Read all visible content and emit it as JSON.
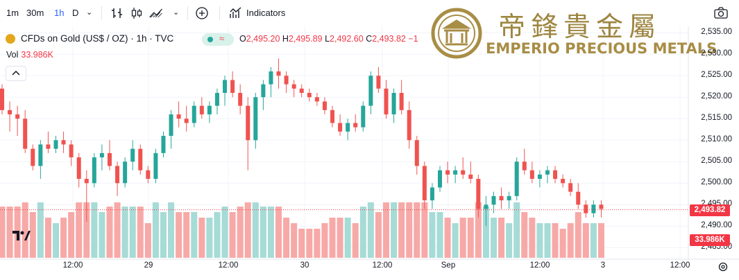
{
  "toolbar": {
    "intervals": [
      "1m",
      "30m",
      "1h",
      "D"
    ],
    "active_interval": "1h",
    "indicators_label": "Indicators"
  },
  "legend": {
    "symbol": "CFDs on Gold (US$ / OZ) · 1h · TVC",
    "o_label": "O",
    "o_value": "2,495.20",
    "h_label": "H",
    "h_value": "2,495.89",
    "l_label": "L",
    "l_value": "2,492.60",
    "c_label": "C",
    "c_value": "2,493.82",
    "change": "−1",
    "vol_label": "Vol",
    "vol_value": "33.986K"
  },
  "logo": {
    "chinese": "帝鋒貴金屬",
    "english": "EMPERIO PRECIOUS METALS"
  },
  "colors": {
    "up": "#26a69a",
    "down": "#ef5350",
    "up_vol": "#a6dbd6",
    "down_vol": "#f7a9a7",
    "gold": "#a88d45"
  },
  "chart_data": {
    "type": "candlestick",
    "y_ticks": [
      "2,535.00",
      "2,530.00",
      "2,525.00",
      "2,520.00",
      "2,515.00",
      "2,510.00",
      "2,505.00",
      "2,500.00",
      "2,495.00",
      "2,490.00",
      "2,485.00"
    ],
    "ylim": [
      2484,
      2536
    ],
    "x_ticks": [
      "12:00",
      "29",
      "12:00",
      "30",
      "12:00",
      "Sep",
      "12:00",
      "3",
      "12:00"
    ],
    "last_price": "2,493.82",
    "last_volume": "33.986K",
    "candles": [
      [
        2522,
        2523,
        2516,
        2517
      ],
      [
        2517,
        2519,
        2512,
        2516
      ],
      [
        2516,
        2518,
        2511,
        2515
      ],
      [
        2515,
        2517,
        2507,
        2508
      ],
      [
        2508,
        2509,
        2503,
        2504
      ],
      [
        2504,
        2510,
        2501,
        2509
      ],
      [
        2509,
        2512,
        2507,
        2508
      ],
      [
        2508,
        2511,
        2507,
        2510
      ],
      [
        2510,
        2512,
        2507,
        2509
      ],
      [
        2509,
        2510,
        2504,
        2506
      ],
      [
        2506,
        2507,
        2499,
        2501
      ],
      [
        2501,
        2503,
        2491,
        2500
      ],
      [
        2500,
        2507,
        2499,
        2506
      ],
      [
        2506,
        2509,
        2503,
        2507
      ],
      [
        2507,
        2510,
        2503,
        2504
      ],
      [
        2504,
        2505,
        2497,
        2500
      ],
      [
        2500,
        2506,
        2499,
        2505
      ],
      [
        2505,
        2510,
        2503,
        2508
      ],
      [
        2508,
        2509,
        2502,
        2503
      ],
      [
        2503,
        2504,
        2500,
        2501
      ],
      [
        2501,
        2508,
        2500,
        2507
      ],
      [
        2507,
        2512,
        2506,
        2511
      ],
      [
        2511,
        2517,
        2508,
        2516
      ],
      [
        2516,
        2519,
        2513,
        2515
      ],
      [
        2515,
        2518,
        2512,
        2514
      ],
      [
        2514,
        2519,
        2513,
        2518
      ],
      [
        2518,
        2520,
        2515,
        2516
      ],
      [
        2516,
        2519,
        2514,
        2518
      ],
      [
        2518,
        2522,
        2516,
        2521
      ],
      [
        2521,
        2525,
        2518,
        2524
      ],
      [
        2524,
        2526,
        2520,
        2521
      ],
      [
        2521,
        2523,
        2516,
        2518
      ],
      [
        2518,
        2520,
        2503,
        2510
      ],
      [
        2510,
        2521,
        2508,
        2520
      ],
      [
        2520,
        2524,
        2517,
        2523
      ],
      [
        2523,
        2527,
        2520,
        2526
      ],
      [
        2526,
        2529,
        2522,
        2525
      ],
      [
        2525,
        2526,
        2521,
        2523
      ],
      [
        2523,
        2524,
        2520,
        2522
      ],
      [
        2522,
        2523,
        2520,
        2521
      ],
      [
        2521,
        2522,
        2519,
        2520
      ],
      [
        2520,
        2521,
        2518,
        2519
      ],
      [
        2519,
        2520,
        2516,
        2517
      ],
      [
        2517,
        2518,
        2513,
        2514
      ],
      [
        2514,
        2516,
        2511,
        2512
      ],
      [
        2512,
        2515,
        2510,
        2514
      ],
      [
        2514,
        2516,
        2512,
        2513
      ],
      [
        2513,
        2519,
        2512,
        2518
      ],
      [
        2518,
        2526,
        2516,
        2525
      ],
      [
        2525,
        2527,
        2521,
        2522
      ],
      [
        2522,
        2524,
        2515,
        2516
      ],
      [
        2516,
        2522,
        2514,
        2521
      ],
      [
        2521,
        2524,
        2516,
        2517
      ],
      [
        2517,
        2519,
        2508,
        2510
      ],
      [
        2510,
        2511,
        2502,
        2504
      ],
      [
        2504,
        2505,
        2494,
        2496
      ],
      [
        2496,
        2500,
        2494,
        2499
      ],
      [
        2499,
        2504,
        2498,
        2503
      ],
      [
        2503,
        2505,
        2500,
        2502
      ],
      [
        2502,
        2504,
        2500,
        2503
      ],
      [
        2503,
        2506,
        2501,
        2502
      ],
      [
        2502,
        2505,
        2500,
        2501
      ],
      [
        2501,
        2502,
        2492,
        2494
      ],
      [
        2494,
        2497,
        2490,
        2495
      ],
      [
        2495,
        2498,
        2493,
        2497
      ],
      [
        2497,
        2499,
        2494,
        2496
      ],
      [
        2496,
        2498,
        2494,
        2497
      ],
      [
        2497,
        2506,
        2496,
        2505
      ],
      [
        2505,
        2508,
        2502,
        2503
      ],
      [
        2503,
        2505,
        2500,
        2501
      ],
      [
        2501,
        2503,
        2499,
        2502
      ],
      [
        2502,
        2504,
        2500,
        2503
      ],
      [
        2503,
        2504,
        2500,
        2501
      ],
      [
        2501,
        2502,
        2499,
        2500
      ],
      [
        2500,
        2501,
        2497,
        2498
      ],
      [
        2498,
        2500,
        2494,
        2495
      ],
      [
        2495,
        2496,
        2492,
        2493
      ],
      [
        2493,
        2496,
        2492,
        2495
      ],
      [
        2495,
        2496,
        2492,
        2494
      ]
    ]
  }
}
